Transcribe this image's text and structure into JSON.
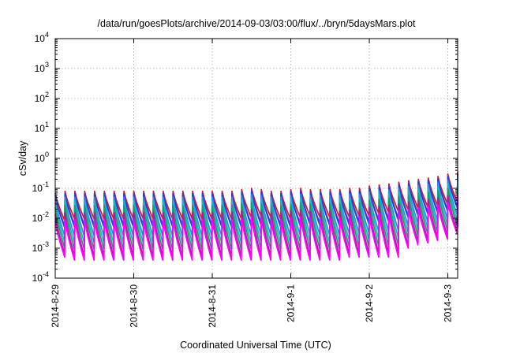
{
  "chart_data": {
    "type": "line",
    "title": "/data/run/goesPlots/archive/2014-09-03/03:00/flux/../bryn/5daysMars.plot",
    "xlabel": "Coordinated Universal Time (UTC)",
    "ylabel": "cSv/day",
    "y_scale": "log",
    "ylim": [
      0.0001,
      10000
    ],
    "xlim": [
      "2014-08-29 00:00",
      "2014-09-03 03:00"
    ],
    "x_ticks": [
      "2014-8-29",
      "2014-8-30",
      "2014-8-31",
      "2014-9-1",
      "2014-9-2",
      "2014-9-3"
    ],
    "y_ticks": [
      {
        "base": "10",
        "exp": "-4"
      },
      {
        "base": "10",
        "exp": "-3"
      },
      {
        "base": "10",
        "exp": "-2"
      },
      {
        "base": "10",
        "exp": "-1"
      },
      {
        "base": "10",
        "exp": "0"
      },
      {
        "base": "10",
        "exp": "1"
      },
      {
        "base": "10",
        "exp": "2"
      },
      {
        "base": "10",
        "exp": "3"
      },
      {
        "base": "10",
        "exp": "4"
      }
    ],
    "grid": true,
    "pattern": {
      "cycle_hours": 3,
      "peak_times": [
        "2014-08-29 00:00",
        "2014-08-29 03:00",
        "2014-08-29 06:00",
        "2014-08-29 09:00",
        "2014-08-29 12:00",
        "2014-08-29 15:00",
        "2014-08-29 18:00",
        "2014-08-29 21:00",
        "2014-08-30 00:00",
        "2014-08-30 03:00",
        "2014-08-30 06:00",
        "2014-08-30 09:00",
        "2014-08-30 12:00",
        "2014-08-30 15:00",
        "2014-08-30 18:00",
        "2014-08-30 21:00",
        "2014-08-31 00:00",
        "2014-08-31 03:00",
        "2014-08-31 06:00",
        "2014-08-31 09:00",
        "2014-08-31 12:00",
        "2014-08-31 15:00",
        "2014-08-31 18:00",
        "2014-08-31 21:00",
        "2014-09-01 00:00",
        "2014-09-01 03:00",
        "2014-09-01 06:00",
        "2014-09-01 09:00",
        "2014-09-01 12:00",
        "2014-09-01 15:00",
        "2014-09-01 18:00",
        "2014-09-01 21:00",
        "2014-09-02 00:00",
        "2014-09-02 03:00",
        "2014-09-02 06:00",
        "2014-09-02 09:00",
        "2014-09-02 12:00",
        "2014-09-02 15:00",
        "2014-09-02 18:00",
        "2014-09-02 21:00",
        "2014-09-03 00:00",
        "2014-09-03 03:00"
      ],
      "peak_values_top_series": [
        0.07,
        0.08,
        0.08,
        0.08,
        0.08,
        0.08,
        0.08,
        0.08,
        0.08,
        0.08,
        0.08,
        0.08,
        0.08,
        0.08,
        0.08,
        0.08,
        0.08,
        0.08,
        0.08,
        0.09,
        0.1,
        0.09,
        0.08,
        0.08,
        0.09,
        0.1,
        0.09,
        0.09,
        0.09,
        0.09,
        0.1,
        0.1,
        0.12,
        0.13,
        0.14,
        0.16,
        0.18,
        0.2,
        0.22,
        0.25,
        0.3,
        0.35
      ],
      "trough_values_bottom_series": [
        0.0005,
        0.0004,
        0.0004,
        0.0004,
        0.0004,
        0.0004,
        0.0004,
        0.0004,
        0.0004,
        0.0004,
        0.0004,
        0.0004,
        0.0004,
        0.0004,
        0.0004,
        0.0004,
        0.0004,
        0.0004,
        0.0004,
        0.0004,
        0.0004,
        0.0004,
        0.0004,
        0.0004,
        0.0004,
        0.0004,
        0.0004,
        0.0004,
        0.0004,
        0.0005,
        0.0005,
        0.0005,
        0.0005,
        0.0005,
        0.0005,
        0.001,
        0.0013,
        0.0015,
        0.0018,
        0.002,
        0.003,
        0.005
      ]
    },
    "series": [
      {
        "color": "#d7191c",
        "scale": 1.15
      },
      {
        "color": "#8b2fb0",
        "scale": 1.0
      },
      {
        "color": "#1f3fdc",
        "scale": 0.95
      },
      {
        "color": "#2a8fe3",
        "scale": 0.72
      },
      {
        "color": "#20b5c5",
        "scale": 0.55
      },
      {
        "color": "#12a06a",
        "scale": 0.38
      },
      {
        "color": "#b5179e",
        "scale": 0.22
      },
      {
        "color": "#ff00ff",
        "scale": 0.13
      }
    ]
  }
}
